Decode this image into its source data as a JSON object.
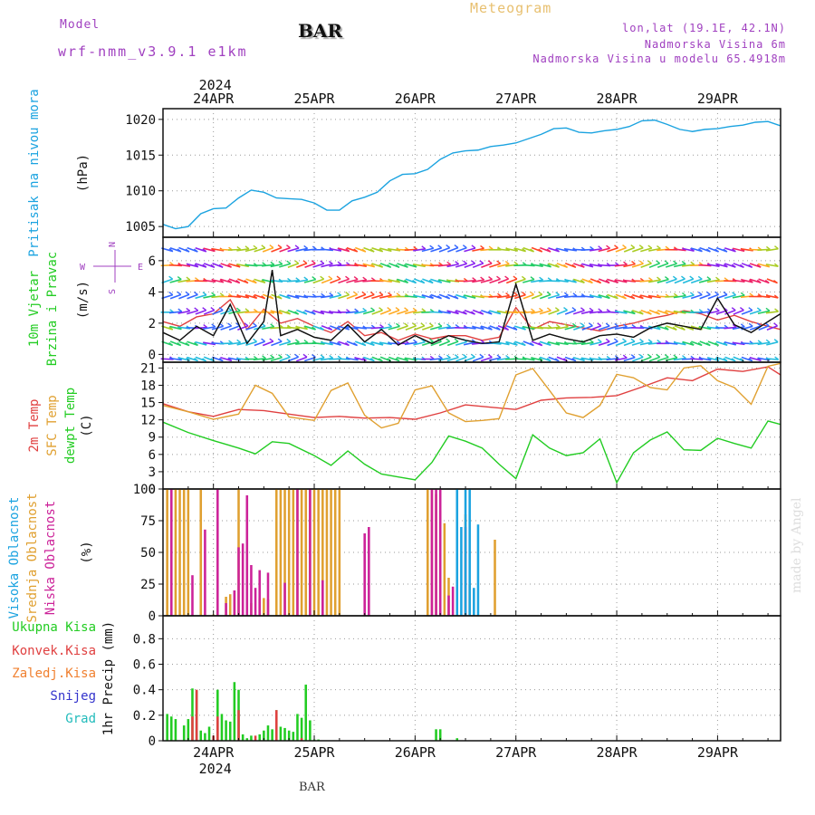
{
  "header": {
    "model_label": "Model",
    "model_name": "wrf-nmm_v3.9.1 e1km",
    "station": "BAR",
    "title": "Meteogram",
    "coords": "lon,lat (19.1E, 42.1N)",
    "elevation": "Nadmorska Visina 6m",
    "model_elevation": "Nadmorska Visina u modelu 65.4918m",
    "footer_station": "BAR",
    "watermark": "made by Angel"
  },
  "colors": {
    "pressure": "#1ba3e0",
    "temp2m": "#e04040",
    "sfc_temp": "#e0a030",
    "dewpoint": "#22cc22",
    "high_cloud": "#1ba3e0",
    "mid_cloud": "#e0a030",
    "low_cloud": "#cc2299",
    "total_precip": "#22cc22",
    "conv_precip": "#e04040",
    "frozen_precip": "#f08030",
    "snow": "#3333cc",
    "grad": "#22bbbb",
    "header_purple": "#a040c0",
    "header_orange": "#e8c070"
  },
  "chart_data": [
    {
      "type": "line",
      "panel": "pressure",
      "ylabel_main": "Pritisak na nivou mora",
      "ylabel_unit": "(hPa)",
      "ylim": [
        1003.5,
        1021.5
      ],
      "yticks": [
        1005,
        1010,
        1015,
        1020
      ],
      "xlim": [
        0,
        147
      ],
      "year_label": "2024",
      "top_day_labels": [
        "24APR",
        "25APR",
        "26APR",
        "27APR",
        "28APR",
        "29APR"
      ],
      "day_positions": [
        12,
        36,
        60,
        84,
        108,
        132
      ],
      "grid": true,
      "series": [
        {
          "color_key": "pressure",
          "x": [
            0,
            3,
            6,
            9,
            12,
            15,
            18,
            21,
            24,
            27,
            30,
            33,
            36,
            39,
            42,
            45,
            48,
            51,
            54,
            57,
            60,
            63,
            66,
            69,
            72,
            75,
            78,
            81,
            84,
            87,
            90,
            93,
            96,
            99,
            102,
            105,
            108,
            111,
            114,
            117,
            120,
            123,
            126,
            129,
            132,
            135,
            138,
            141,
            144,
            147
          ],
          "y": [
            1005.3,
            1004.7,
            1005.0,
            1006.8,
            1007.5,
            1007.6,
            1009.0,
            1010.1,
            1009.8,
            1009.0,
            1008.9,
            1008.8,
            1008.3,
            1007.3,
            1007.3,
            1008.6,
            1009.1,
            1009.8,
            1011.4,
            1012.3,
            1012.4,
            1013.0,
            1014.4,
            1015.3,
            1015.6,
            1015.7,
            1016.2,
            1016.4,
            1016.7,
            1017.3,
            1017.9,
            1018.7,
            1018.8,
            1018.2,
            1018.1,
            1018.4,
            1018.6,
            1019.0,
            1019.8,
            1019.9,
            1019.3,
            1018.6,
            1018.3,
            1018.6,
            1018.7,
            1019.0,
            1019.2,
            1019.6,
            1019.7,
            1019.1
          ]
        }
      ]
    },
    {
      "type": "line",
      "panel": "wind",
      "ylabel_main": "10m Vjetar",
      "ylabel_sub": "Brzina i Pravac",
      "ylabel_unit": "(m/s)",
      "compass": [
        "N",
        "E",
        "W",
        "S"
      ],
      "ylim": [
        -0.5,
        7.5
      ],
      "yticks": [
        0,
        2,
        4,
        6
      ],
      "xlim": [
        0,
        147
      ],
      "grid": true,
      "series": [
        {
          "name": "wind speed",
          "color_key": "black",
          "x": [
            0,
            4,
            8,
            12,
            16,
            20,
            24,
            26,
            28,
            32,
            36,
            40,
            44,
            48,
            52,
            56,
            60,
            64,
            68,
            72,
            76,
            80,
            84,
            88,
            92,
            96,
            100,
            104,
            108,
            112,
            116,
            120,
            124,
            128,
            132,
            136,
            140,
            144,
            147
          ],
          "y": [
            1.4,
            0.9,
            1.8,
            1.2,
            3.2,
            0.7,
            2.1,
            5.4,
            1.2,
            1.6,
            1.1,
            0.9,
            1.9,
            0.8,
            1.6,
            0.6,
            1.2,
            0.7,
            1.2,
            0.9,
            0.7,
            0.8,
            4.5,
            0.9,
            1.3,
            1.0,
            0.8,
            1.2,
            1.3,
            1.1,
            1.7,
            2.0,
            1.8,
            1.6,
            3.6,
            1.9,
            1.4,
            2.1,
            2.6
          ]
        },
        {
          "name": "gust",
          "color_key": "temp2m",
          "x": [
            0,
            4,
            8,
            12,
            16,
            20,
            24,
            28,
            32,
            36,
            40,
            44,
            48,
            52,
            56,
            60,
            64,
            68,
            72,
            76,
            80,
            84,
            88,
            92,
            96,
            100,
            104,
            108,
            112,
            116,
            120,
            124,
            128,
            132,
            136,
            140,
            144,
            147
          ],
          "y": [
            2.1,
            1.8,
            2.4,
            2.6,
            3.5,
            1.6,
            2.9,
            2.0,
            2.3,
            1.8,
            1.4,
            2.1,
            1.2,
            1.4,
            0.9,
            1.3,
            1.0,
            1.2,
            1.2,
            0.9,
            1.1,
            3.0,
            1.6,
            2.1,
            1.9,
            1.7,
            1.5,
            1.8,
            2.0,
            2.3,
            2.5,
            2.8,
            2.6,
            2.2,
            2.5,
            2.1,
            1.8,
            1.6
          ]
        }
      ],
      "arrow_levels": [
        0,
        1,
        2,
        3,
        4,
        5,
        6,
        7
      ]
    },
    {
      "type": "line",
      "panel": "temperature",
      "ylabel_main": "2m Temp",
      "ylabel_sub": "SFC Temp",
      "ylabel_third": "dewpt Temp",
      "ylabel_unit": "(C)",
      "ylim": [
        0,
        22
      ],
      "yticks": [
        0,
        3,
        6,
        9,
        12,
        15,
        18,
        21
      ],
      "xlim": [
        0,
        147
      ],
      "grid": true,
      "series": [
        {
          "name": "2m Temp",
          "color_key": "temp2m",
          "x": [
            0,
            6,
            12,
            18,
            24,
            30,
            36,
            42,
            48,
            54,
            60,
            66,
            72,
            78,
            84,
            90,
            96,
            102,
            108,
            114,
            120,
            126,
            132,
            138,
            144,
            147
          ],
          "y": [
            14.8,
            13.4,
            12.6,
            13.8,
            13.6,
            13.0,
            12.4,
            12.6,
            12.3,
            12.4,
            12.1,
            13.2,
            14.6,
            14.2,
            13.8,
            15.4,
            15.8,
            15.9,
            16.2,
            17.7,
            19.3,
            18.8,
            20.8,
            20.4,
            21.2,
            19.8
          ]
        },
        {
          "name": "SFC Temp",
          "color_key": "sfc_temp",
          "x": [
            0,
            6,
            12,
            18,
            22,
            26,
            30,
            36,
            40,
            44,
            48,
            52,
            56,
            60,
            64,
            68,
            72,
            76,
            80,
            84,
            88,
            92,
            96,
            100,
            104,
            108,
            112,
            116,
            120,
            124,
            128,
            132,
            136,
            140,
            144,
            147
          ],
          "y": [
            14.5,
            13.4,
            12.1,
            13.0,
            18.0,
            16.6,
            12.5,
            11.9,
            17.1,
            18.4,
            12.8,
            10.6,
            11.4,
            17.2,
            17.9,
            13.2,
            11.7,
            11.9,
            12.2,
            19.8,
            20.9,
            17.1,
            13.2,
            12.4,
            14.5,
            19.9,
            19.3,
            17.6,
            17.2,
            21.0,
            21.4,
            18.8,
            17.6,
            14.7,
            21.3,
            21.8
          ]
        },
        {
          "name": "dewpt Temp",
          "color_key": "dewpoint",
          "x": [
            0,
            6,
            12,
            18,
            22,
            26,
            30,
            36,
            40,
            44,
            48,
            52,
            56,
            60,
            64,
            68,
            72,
            76,
            80,
            84,
            88,
            92,
            96,
            100,
            104,
            108,
            112,
            116,
            120,
            124,
            128,
            132,
            136,
            140,
            144,
            147
          ],
          "y": [
            11.6,
            9.8,
            8.4,
            7.1,
            6.1,
            8.2,
            7.9,
            5.8,
            4.1,
            6.6,
            4.3,
            2.6,
            2.1,
            1.6,
            4.6,
            9.2,
            8.3,
            7.1,
            4.3,
            1.8,
            9.4,
            7.1,
            5.8,
            6.3,
            8.7,
            1.1,
            6.3,
            8.5,
            9.9,
            6.8,
            6.7,
            8.8,
            7.9,
            7.1,
            11.8,
            11.2
          ]
        }
      ]
    },
    {
      "type": "bar",
      "panel": "clouds",
      "ylabel_main": "Visoka Oblacnost",
      "ylabel_sub": "Srednja Oblacnost",
      "ylabel_third": "Niska Oblacnost",
      "ylabel_unit": "(%)",
      "ylim": [
        0,
        100
      ],
      "yticks": [
        0,
        25,
        50,
        75,
        100
      ],
      "xlim": [
        0,
        147
      ],
      "grid": true,
      "series": [
        {
          "name": "Srednja Oblacnost",
          "color_key": "mid_cloud",
          "x": [
            1,
            2,
            3,
            4,
            5,
            6,
            9,
            12,
            15,
            16,
            17,
            18,
            21,
            23,
            24,
            25,
            27,
            28,
            29,
            30,
            31,
            32,
            33,
            34,
            35,
            36,
            37,
            38,
            39,
            40,
            41,
            42,
            63,
            64,
            65,
            66,
            67,
            68,
            72,
            73,
            79
          ],
          "y": [
            100,
            100,
            100,
            100,
            100,
            100,
            100,
            1,
            15,
            17,
            20,
            100,
            10,
            14,
            14,
            13,
            100,
            100,
            100,
            100,
            100,
            100,
            100,
            100,
            100,
            100,
            100,
            100,
            100,
            100,
            100,
            100,
            100,
            100,
            96,
            83,
            73,
            30,
            80,
            25,
            60
          ]
        },
        {
          "name": "Niska Oblacnost",
          "color_key": "low_cloud",
          "x": [
            2,
            7,
            10,
            13,
            15,
            17,
            18,
            19,
            20,
            21,
            22,
            23,
            25,
            29,
            32,
            35,
            38,
            48,
            49,
            64,
            65,
            66,
            68,
            69,
            72
          ],
          "y": [
            100,
            32,
            68,
            100,
            10,
            20,
            54,
            57,
            95,
            40,
            22,
            36,
            34,
            26,
            100,
            100,
            28,
            65,
            70,
            100,
            100,
            100,
            16,
            23,
            70
          ]
        },
        {
          "name": "Visoka Oblacnost",
          "color_key": "high_cloud",
          "x": [
            70,
            71,
            72,
            73,
            74,
            75
          ],
          "y": [
            100,
            70,
            100,
            100,
            22,
            72
          ]
        }
      ]
    },
    {
      "type": "bar",
      "panel": "precipitation",
      "legend": [
        "Ukupna Kisa",
        "Konvek.Kisa",
        "Zaledj.Kisa",
        "Snijeg",
        "Grad"
      ],
      "ylabel_unit": "1hr Precip (mm)",
      "ylim": [
        0,
        0.98
      ],
      "yticks": [
        0,
        0.2,
        0.4,
        0.6,
        0.8
      ],
      "xlim": [
        0,
        147
      ],
      "grid": true,
      "year_label": "2024",
      "bottom_day_labels": [
        "24APR",
        "25APR",
        "26APR",
        "27APR",
        "28APR",
        "29APR"
      ],
      "day_positions": [
        12,
        36,
        60,
        84,
        108,
        132
      ],
      "series": [
        {
          "name": "Ukupna Kisa",
          "color_key": "total_precip",
          "x": [
            1,
            2,
            3,
            5,
            6,
            7,
            8,
            9,
            10,
            11,
            13,
            14,
            15,
            16,
            17,
            18,
            19,
            20,
            21,
            23,
            24,
            25,
            26,
            27,
            28,
            29,
            30,
            31,
            32,
            33,
            34,
            35,
            36,
            37,
            65,
            66,
            70
          ],
          "y": [
            0.21,
            0.19,
            0.17,
            0.12,
            0.17,
            0.41,
            0.39,
            0.08,
            0.06,
            0.11,
            0.4,
            0.21,
            0.16,
            0.15,
            0.46,
            0.4,
            0.05,
            0.02,
            0.04,
            0.05,
            0.08,
            0.12,
            0.09,
            0.24,
            0.11,
            0.1,
            0.08,
            0.07,
            0.21,
            0.18,
            0.44,
            0.16,
            0.01,
            0.01,
            0.09,
            0.09,
            0.02
          ]
        },
        {
          "name": "Konvek.Kisa",
          "color_key": "conv_precip",
          "x": [
            7,
            8,
            12,
            13,
            18,
            22,
            27,
            33
          ],
          "y": [
            0.19,
            0.4,
            0.04,
            0.19,
            0.24,
            0.04,
            0.24,
            0.02
          ]
        }
      ]
    }
  ]
}
